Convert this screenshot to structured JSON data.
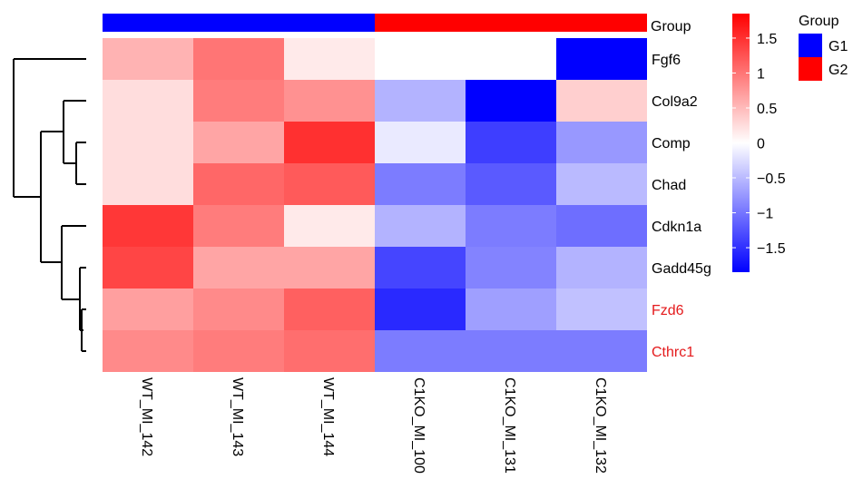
{
  "chart_data": {
    "type": "heatmap",
    "columns": [
      "WT_MI_142",
      "WT_MI_143",
      "WT_MI_144",
      "C1KO_MI_100",
      "C1KO_MI_131",
      "C1KO_MI_132"
    ],
    "column_groups": [
      "G1",
      "G1",
      "G1",
      "G2",
      "G2",
      "G2"
    ],
    "rows": [
      "Fgf6",
      "Col9a2",
      "Comp",
      "Chad",
      "Cdkn1a",
      "Gadd45g",
      "Fzd6",
      "Cthrc1"
    ],
    "highlighted_rows": [
      "Fzd6",
      "Cthrc1"
    ],
    "highlight_color": "#E41A1C",
    "values": [
      [
        0.55,
        1.0,
        0.15,
        0.0,
        0.0,
        -1.85
      ],
      [
        0.25,
        0.95,
        0.8,
        -0.55,
        -1.85,
        0.35
      ],
      [
        0.25,
        0.65,
        1.5,
        -0.15,
        -1.4,
        -0.75
      ],
      [
        0.25,
        1.1,
        1.2,
        -0.95,
        -1.2,
        -0.5
      ],
      [
        1.45,
        0.95,
        0.15,
        -0.55,
        -0.95,
        -1.05
      ],
      [
        1.35,
        0.65,
        0.65,
        -1.35,
        -0.9,
        -0.55
      ],
      [
        0.7,
        0.85,
        1.15,
        -1.55,
        -0.7,
        -0.45
      ],
      [
        0.85,
        0.95,
        1.05,
        -0.95,
        -0.95,
        -0.95
      ]
    ],
    "group_annotation": {
      "title": "Group",
      "legend_title": "Group",
      "levels": [
        {
          "name": "G1",
          "color": "#0000FF"
        },
        {
          "name": "G2",
          "color": "#FF0000"
        }
      ]
    },
    "colorbar": {
      "min": -1.85,
      "max": 1.85,
      "colors": [
        "#0000FF",
        "#FFFFFF",
        "#FF0000"
      ],
      "ticks": [
        1.5,
        1,
        0.5,
        0,
        -0.5,
        -1,
        -1.5
      ],
      "tick_labels": [
        "1.5",
        "1",
        "0.5",
        "0",
        "−0.5",
        "−1",
        "−1.5"
      ]
    },
    "row_dendrogram": "left",
    "grid": false,
    "legend_position": "right"
  }
}
